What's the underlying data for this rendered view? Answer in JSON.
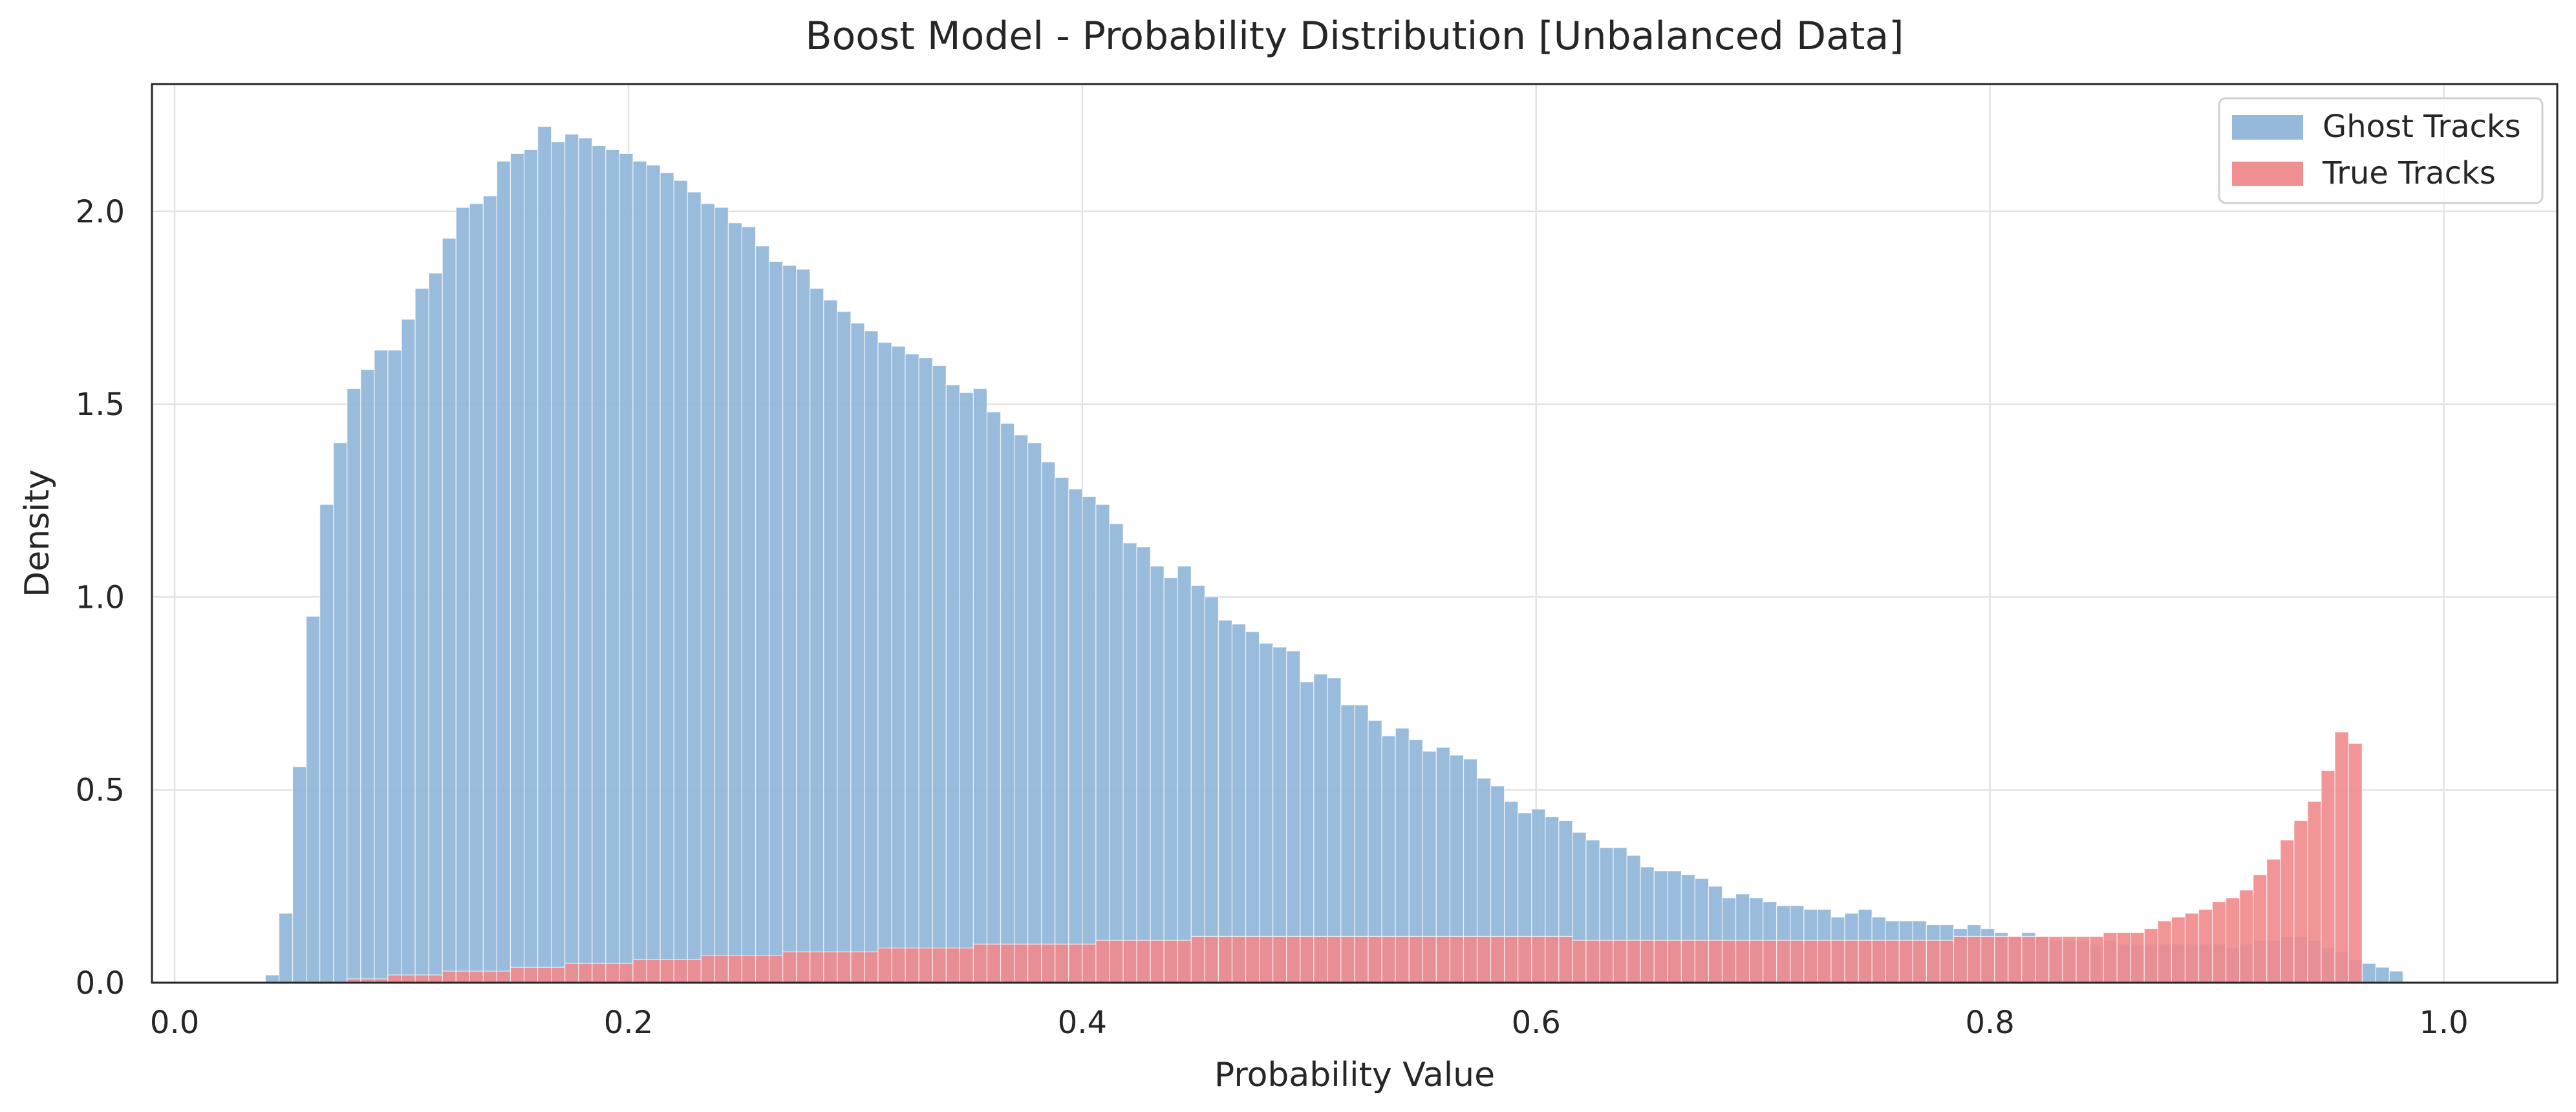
{
  "chart_data": {
    "type": "bar",
    "title": "Boost Model - Probability Distribution [Unbalanced Data]",
    "xlabel": "Probability Value",
    "ylabel": "Density",
    "xlim": [
      -0.01,
      1.05
    ],
    "ylim": [
      0,
      2.33
    ],
    "xticks": [
      0.0,
      0.2,
      0.4,
      0.6,
      0.8,
      1.0
    ],
    "xtick_labels": [
      "0.0",
      "0.2",
      "0.4",
      "0.6",
      "0.8",
      "1.0"
    ],
    "yticks": [
      0.0,
      0.5,
      1.0,
      1.5,
      2.0
    ],
    "ytick_labels": [
      "0.0",
      "0.5",
      "1.0",
      "1.5",
      "2.0"
    ],
    "grid": true,
    "legend_position": "top-right",
    "bin_start": 0.04,
    "bin_width": 0.006,
    "series": [
      {
        "name": "Ghost Tracks",
        "color": "#8fb5d8",
        "values": [
          0.02,
          0.18,
          0.56,
          0.95,
          1.24,
          1.4,
          1.54,
          1.59,
          1.64,
          1.64,
          1.72,
          1.8,
          1.84,
          1.93,
          2.01,
          2.02,
          2.04,
          2.13,
          2.15,
          2.16,
          2.22,
          2.18,
          2.2,
          2.19,
          2.17,
          2.16,
          2.15,
          2.13,
          2.12,
          2.1,
          2.08,
          2.05,
          2.02,
          2.01,
          1.97,
          1.96,
          1.91,
          1.87,
          1.86,
          1.85,
          1.8,
          1.77,
          1.74,
          1.71,
          1.69,
          1.66,
          1.65,
          1.63,
          1.62,
          1.6,
          1.55,
          1.53,
          1.54,
          1.48,
          1.45,
          1.42,
          1.4,
          1.35,
          1.31,
          1.28,
          1.26,
          1.24,
          1.19,
          1.14,
          1.13,
          1.08,
          1.05,
          1.08,
          1.03,
          1.0,
          0.94,
          0.93,
          0.91,
          0.88,
          0.87,
          0.86,
          0.78,
          0.8,
          0.79,
          0.72,
          0.72,
          0.68,
          0.64,
          0.66,
          0.63,
          0.6,
          0.61,
          0.59,
          0.58,
          0.53,
          0.51,
          0.47,
          0.44,
          0.45,
          0.43,
          0.42,
          0.39,
          0.37,
          0.35,
          0.35,
          0.33,
          0.3,
          0.29,
          0.29,
          0.28,
          0.27,
          0.25,
          0.22,
          0.23,
          0.22,
          0.21,
          0.2,
          0.2,
          0.19,
          0.19,
          0.17,
          0.18,
          0.19,
          0.17,
          0.16,
          0.16,
          0.16,
          0.15,
          0.15,
          0.14,
          0.15,
          0.14,
          0.13,
          0.12,
          0.13,
          0.12,
          0.11,
          0.11,
          0.11,
          0.1,
          0.11,
          0.1,
          0.1,
          0.1,
          0.1,
          0.1,
          0.1,
          0.1,
          0.1,
          0.09,
          0.1,
          0.11,
          0.11,
          0.12,
          0.12,
          0.11,
          0.09,
          0.08,
          0.06,
          0.05,
          0.04,
          0.03
        ]
      },
      {
        "name": "True Tracks",
        "color": "#f08a8c",
        "values": [
          0.0,
          0.0,
          0.0,
          0.0,
          0.0,
          0.0,
          0.01,
          0.01,
          0.01,
          0.02,
          0.02,
          0.02,
          0.02,
          0.03,
          0.03,
          0.03,
          0.03,
          0.03,
          0.04,
          0.04,
          0.04,
          0.04,
          0.05,
          0.05,
          0.05,
          0.05,
          0.05,
          0.06,
          0.06,
          0.06,
          0.06,
          0.06,
          0.07,
          0.07,
          0.07,
          0.07,
          0.07,
          0.07,
          0.08,
          0.08,
          0.08,
          0.08,
          0.08,
          0.08,
          0.08,
          0.09,
          0.09,
          0.09,
          0.09,
          0.09,
          0.09,
          0.09,
          0.1,
          0.1,
          0.1,
          0.1,
          0.1,
          0.1,
          0.1,
          0.1,
          0.1,
          0.11,
          0.11,
          0.11,
          0.11,
          0.11,
          0.11,
          0.11,
          0.12,
          0.12,
          0.12,
          0.12,
          0.12,
          0.12,
          0.12,
          0.12,
          0.12,
          0.12,
          0.12,
          0.12,
          0.12,
          0.12,
          0.12,
          0.12,
          0.12,
          0.12,
          0.12,
          0.12,
          0.12,
          0.12,
          0.12,
          0.12,
          0.12,
          0.12,
          0.12,
          0.12,
          0.11,
          0.11,
          0.11,
          0.11,
          0.11,
          0.11,
          0.11,
          0.11,
          0.11,
          0.11,
          0.11,
          0.11,
          0.11,
          0.11,
          0.11,
          0.11,
          0.11,
          0.11,
          0.11,
          0.11,
          0.11,
          0.11,
          0.11,
          0.11,
          0.11,
          0.11,
          0.11,
          0.11,
          0.12,
          0.12,
          0.12,
          0.12,
          0.12,
          0.12,
          0.12,
          0.12,
          0.12,
          0.12,
          0.12,
          0.13,
          0.13,
          0.13,
          0.14,
          0.16,
          0.17,
          0.18,
          0.19,
          0.21,
          0.22,
          0.24,
          0.28,
          0.32,
          0.37,
          0.42,
          0.47,
          0.55,
          0.65,
          0.62
        ]
      }
    ]
  }
}
